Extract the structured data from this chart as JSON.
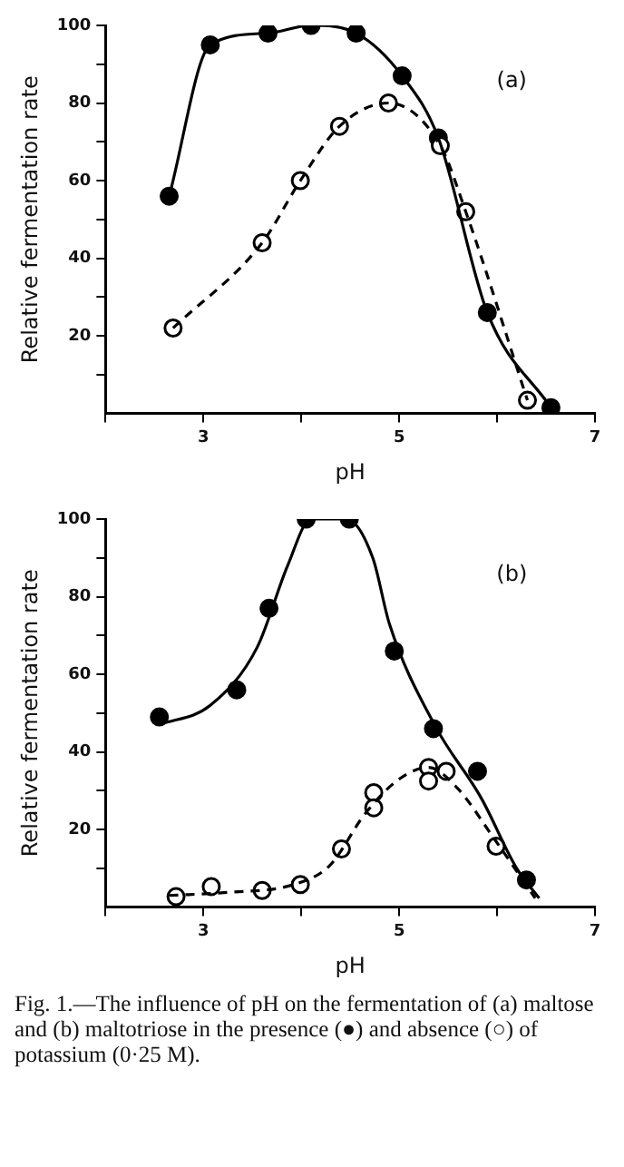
{
  "chart_data": [
    {
      "type": "scatter",
      "xlabel": "pH",
      "ylabel": "Relative fermentation rate",
      "annotations": [
        "(a)"
      ],
      "xlim": [
        2,
        7
      ],
      "xticks": [
        {
          "value": 2,
          "label": null
        },
        3,
        {
          "value": 4,
          "label": null
        },
        5,
        {
          "value": 6,
          "label": null
        },
        7
      ],
      "ylim": [
        0,
        100
      ],
      "yticks": [
        {
          "value": 10,
          "label": null
        },
        20,
        {
          "value": 30,
          "label": null
        },
        40,
        {
          "value": 50,
          "label": null
        },
        60,
        {
          "value": 70,
          "label": null
        },
        80,
        {
          "value": 90,
          "label": null
        },
        100
      ],
      "grid": false,
      "legend": false,
      "marker": "circle",
      "series": [
        {
          "type": "line",
          "color": "#000000",
          "line_style": "solid",
          "marker": "none",
          "x": [
            2.65,
            3.07,
            3.66,
            4.1,
            4.56,
            5.03,
            5.4,
            5.9,
            6.55
          ],
          "values": [
            56,
            95,
            98,
            100,
            98,
            87,
            71,
            26,
            1.5
          ]
        },
        {
          "type": "line",
          "color": "#000000",
          "line_style": "dashed",
          "marker": "none",
          "x": [
            2.69,
            3.6,
            3.99,
            4.39,
            4.89,
            5.42,
            5.68,
            6.31
          ],
          "values": [
            22,
            44,
            60,
            74,
            80,
            69,
            52,
            3.4
          ]
        },
        {
          "type": "scatter",
          "color": "#ffffff",
          "x": [
            2.69,
            3.6,
            3.99,
            4.39,
            4.89,
            5.42,
            5.68,
            6.31
          ],
          "values": [
            22,
            44,
            60,
            74,
            80,
            69,
            52,
            3.4
          ]
        },
        {
          "type": "scatter",
          "color": "#000000",
          "x": [
            2.65,
            3.07,
            3.66,
            4.1,
            4.56,
            5.03,
            5.4,
            5.9,
            6.55
          ],
          "values": [
            56,
            95,
            98,
            100,
            98,
            87,
            71,
            26,
            1.5
          ]
        }
      ]
    },
    {
      "type": "scatter",
      "xlabel": "pH",
      "ylabel": "Relative fermentation rate",
      "annotations": [
        "(b)",
        "Fig. 1.—The influence of pH on the fermentation of (a) maltose and (b) maltotriose in the presence (●) and absence (○) of potassium (0·25 M)."
      ],
      "xlim": [
        2,
        7
      ],
      "xticks": [
        {
          "value": 2,
          "label": null
        },
        3,
        {
          "value": 4,
          "label": null
        },
        5,
        {
          "value": 6,
          "label": null
        },
        7
      ],
      "ylim": [
        0,
        100
      ],
      "yticks": [
        {
          "value": 10,
          "label": null
        },
        20,
        {
          "value": 30,
          "label": null
        },
        40,
        {
          "value": 50,
          "label": null
        },
        60,
        {
          "value": 70,
          "label": null
        },
        80,
        {
          "value": 90,
          "label": null
        },
        100
      ],
      "grid": false,
      "legend": false,
      "marker": "circle",
      "series": [
        {
          "type": "line",
          "color": "#000000",
          "line_style": "solid",
          "marker": "none",
          "x": [
            2.55,
            3.07,
            3.55,
            3.86,
            4.1,
            4.46,
            4.73,
            4.9,
            5.36,
            5.84,
            6.2,
            6.43
          ],
          "values": [
            47,
            52,
            67,
            88,
            100,
            100,
            90,
            73,
            47,
            28,
            10,
            2.3
          ]
        },
        {
          "type": "line",
          "color": "#000000",
          "line_style": "dashed",
          "marker": "none",
          "x": [
            2.65,
            3.25,
            3.92,
            4.29,
            4.65,
            5.0,
            5.3,
            5.6,
            5.96,
            6.39
          ],
          "values": [
            3,
            3.8,
            5.8,
            10.7,
            24,
            33,
            36,
            30.5,
            18,
            2.3
          ]
        },
        {
          "type": "scatter",
          "color": "#000000",
          "x": [
            2.55,
            3.34,
            3.67,
            4.05,
            4.49,
            4.95,
            5.35,
            5.8,
            6.3
          ],
          "values": [
            49,
            56,
            77,
            100,
            100,
            66,
            46,
            35,
            7
          ]
        },
        {
          "type": "scatter",
          "color": "#ffffff",
          "x": [
            2.72,
            3.08,
            3.6,
            3.99,
            4.41,
            4.74,
            4.74,
            5.3,
            5.3,
            5.48,
            5.99
          ],
          "values": [
            2.7,
            5.3,
            4.3,
            5.8,
            15,
            29.5,
            25.6,
            36,
            32.5,
            35,
            15.7
          ]
        }
      ]
    }
  ]
}
